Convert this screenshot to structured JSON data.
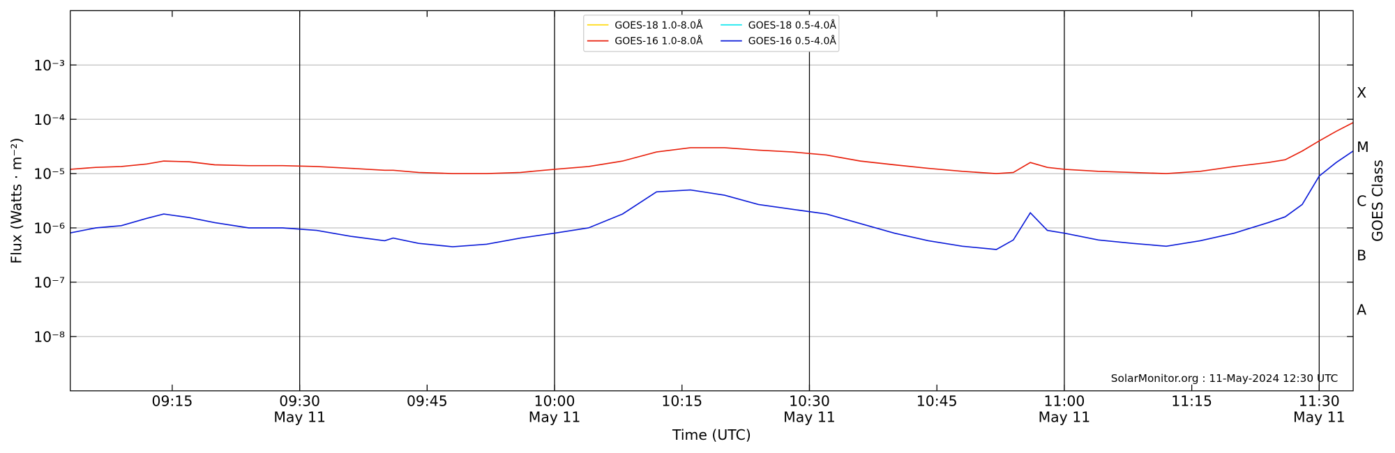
{
  "chart_data": {
    "type": "line",
    "ylabel": "Flux (Watts · m⁻²)",
    "y2label": "GOES Class",
    "xlabel": "Time (UTC)",
    "annotation": "SolarMonitor.org : 11-May-2024 12:30 UTC",
    "log_y": true,
    "grid": true,
    "legend_loc": "upper center",
    "xlim": [
      "09:03",
      "11:34"
    ],
    "xticks": [
      "09:15",
      "09:30",
      "09:45",
      "10:00",
      "10:15",
      "10:30",
      "10:45",
      "11:00",
      "11:15",
      "11:30"
    ],
    "xtick_dates": [
      null,
      "May 11",
      null,
      "May 11",
      null,
      "May 11",
      null,
      "May 11",
      null,
      "May 11"
    ],
    "vlines": [
      "09:30",
      "10:00",
      "10:30",
      "11:00",
      "11:30"
    ],
    "ylim": [
      1e-09,
      0.01
    ],
    "yticks": [
      {
        "value": 1e-08,
        "label": "10⁻⁸"
      },
      {
        "value": 1e-07,
        "label": "10⁻⁷"
      },
      {
        "value": 1e-06,
        "label": "10⁻⁶"
      },
      {
        "value": 1e-05,
        "label": "10⁻⁵"
      },
      {
        "value": 0.0001,
        "label": "10⁻⁴"
      },
      {
        "value": 0.001,
        "label": "10⁻³"
      }
    ],
    "y2lim": [
      1e-09,
      0.01
    ],
    "y2ticks": [
      {
        "value": 3.16e-08,
        "label": "A"
      },
      {
        "value": 3.16e-07,
        "label": "B"
      },
      {
        "value": 3.16e-06,
        "label": "C"
      },
      {
        "value": 3.16e-05,
        "label": "M"
      },
      {
        "value": 0.000316,
        "label": "X"
      }
    ],
    "x": [
      "09:03",
      "09:06",
      "09:09",
      "09:12",
      "09:14",
      "09:17",
      "09:20",
      "09:24",
      "09:28",
      "09:32",
      "09:36",
      "09:40",
      "09:41",
      "09:44",
      "09:48",
      "09:52",
      "09:56",
      "10:00",
      "10:04",
      "10:08",
      "10:12",
      "10:16",
      "10:20",
      "10:24",
      "10:28",
      "10:32",
      "10:36",
      "10:40",
      "10:44",
      "10:48",
      "10:52",
      "10:54",
      "10:56",
      "10:58",
      "11:00",
      "11:04",
      "11:08",
      "11:12",
      "11:16",
      "11:20",
      "11:24",
      "11:26",
      "11:28",
      "11:30",
      "11:32",
      "11:34"
    ],
    "series": [
      {
        "name": "GOES-18 1.0-8.0Å",
        "color": "#ffd700",
        "values": [
          null,
          null,
          null,
          null,
          null,
          null,
          null,
          null,
          null,
          null,
          null,
          null,
          null,
          null,
          null,
          null,
          null,
          null,
          null,
          null,
          null,
          null,
          null,
          null,
          null,
          null,
          null,
          null,
          null,
          null,
          null,
          null,
          null,
          null,
          null,
          null,
          null,
          null,
          null,
          null,
          null,
          null,
          null,
          null,
          null,
          null
        ]
      },
      {
        "name": "GOES-16 1.0-8.0Å",
        "color": "#e8200c",
        "values": [
          1.2e-05,
          1.3e-05,
          1.35e-05,
          1.5e-05,
          1.7e-05,
          1.65e-05,
          1.45e-05,
          1.4e-05,
          1.4e-05,
          1.35e-05,
          1.25e-05,
          1.15e-05,
          1.15e-05,
          1.05e-05,
          1e-05,
          1e-05,
          1.05e-05,
          1.2e-05,
          1.35e-05,
          1.7e-05,
          2.5e-05,
          3e-05,
          3e-05,
          2.7e-05,
          2.5e-05,
          2.2e-05,
          1.7e-05,
          1.45e-05,
          1.25e-05,
          1.1e-05,
          1e-05,
          1.05e-05,
          1.6e-05,
          1.3e-05,
          1.2e-05,
          1.1e-05,
          1.05e-05,
          1e-05,
          1.1e-05,
          1.35e-05,
          1.6e-05,
          1.8e-05,
          2.6e-05,
          4e-05,
          6e-05,
          8.7e-05
        ]
      },
      {
        "name": "GOES-18 0.5-4.0Å",
        "color": "#00e5ee",
        "values": [
          null,
          null,
          null,
          null,
          null,
          null,
          null,
          null,
          null,
          null,
          null,
          null,
          null,
          null,
          null,
          null,
          null,
          null,
          null,
          null,
          null,
          null,
          null,
          null,
          null,
          null,
          null,
          null,
          null,
          null,
          null,
          null,
          null,
          null,
          null,
          null,
          null,
          null,
          null,
          null,
          null,
          null,
          null,
          null,
          null,
          null
        ]
      },
      {
        "name": "GOES-16 0.5-4.0Å",
        "color": "#0a1ad8",
        "values": [
          8.1e-07,
          1e-06,
          1.1e-06,
          1.5e-06,
          1.8e-06,
          1.55e-06,
          1.25e-06,
          1e-06,
          1e-06,
          9e-07,
          7e-07,
          5.8e-07,
          6.5e-07,
          5.2e-07,
          4.5e-07,
          5e-07,
          6.5e-07,
          8e-07,
          1e-06,
          1.8e-06,
          4.6e-06,
          5e-06,
          4e-06,
          2.7e-06,
          2.2e-06,
          1.8e-06,
          1.2e-06,
          8e-07,
          5.8e-07,
          4.6e-07,
          4e-07,
          6e-07,
          1.9e-06,
          9e-07,
          8e-07,
          6e-07,
          5.2e-07,
          4.6e-07,
          5.8e-07,
          8e-07,
          1.25e-06,
          1.6e-06,
          2.7e-06,
          9e-06,
          1.6e-05,
          2.6e-05
        ]
      }
    ]
  }
}
